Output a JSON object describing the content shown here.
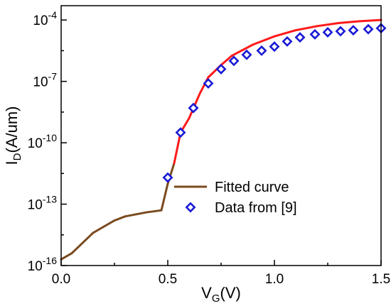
{
  "chart_data": {
    "type": "line",
    "title": "",
    "xlabel": {
      "main": "V",
      "sub": "G",
      "tail": "(V)"
    },
    "ylabel": {
      "main": "I",
      "sub": "D",
      "tail": "(A/um)"
    },
    "xlim": [
      0.0,
      1.5
    ],
    "ylim_log10": [
      -16,
      -3.3
    ],
    "yscale": "log",
    "grid": false,
    "x_ticks": [
      {
        "value": 0.0,
        "label": "0.0"
      },
      {
        "value": 0.5,
        "label": "0.5"
      },
      {
        "value": 1.0,
        "label": "1.0"
      },
      {
        "value": 1.5,
        "label": "1.5"
      }
    ],
    "y_ticks": [
      {
        "value": -16,
        "base": "10",
        "exp": "-16"
      },
      {
        "value": -13,
        "base": "10",
        "exp": "-13"
      },
      {
        "value": -10,
        "base": "10",
        "exp": "-10"
      },
      {
        "value": -7,
        "base": "10",
        "exp": "-7"
      },
      {
        "value": -4,
        "base": "10",
        "exp": "-4"
      }
    ],
    "legend_position": "center-right",
    "series": [
      {
        "name": "Fitted curve",
        "style": "line",
        "colors": {
          "low": "#7a4a1e",
          "high": "#ff1a1a"
        },
        "x": [
          0.0,
          0.05,
          0.1,
          0.15,
          0.2,
          0.25,
          0.3,
          0.35,
          0.4,
          0.45,
          0.47,
          0.5,
          0.53,
          0.56,
          0.6,
          0.65,
          0.69,
          0.75,
          0.8,
          0.9,
          1.0,
          1.1,
          1.2,
          1.3,
          1.4,
          1.5
        ],
        "y_log10": [
          -15.7,
          -15.4,
          -14.9,
          -14.4,
          -14.1,
          -13.8,
          -13.6,
          -13.5,
          -13.4,
          -13.33,
          -13.3,
          -12.0,
          -11.0,
          -9.5,
          -8.8,
          -7.6,
          -6.8,
          -6.2,
          -5.75,
          -5.2,
          -4.8,
          -4.5,
          -4.3,
          -4.15,
          -4.06,
          -4.0
        ]
      },
      {
        "name": "Data from [9]",
        "style": "marker",
        "marker": "diamond",
        "color": "#1a1ad4",
        "x": [
          0.5,
          0.56,
          0.62,
          0.69,
          0.75,
          0.81,
          0.87,
          0.94,
          1.0,
          1.06,
          1.12,
          1.19,
          1.25,
          1.31,
          1.37,
          1.44,
          1.5
        ],
        "y_log10": [
          -11.7,
          -9.5,
          -8.3,
          -7.1,
          -6.4,
          -6.0,
          -5.7,
          -5.5,
          -5.3,
          -5.05,
          -4.85,
          -4.7,
          -4.6,
          -4.55,
          -4.5,
          -4.45,
          -4.4
        ]
      }
    ]
  }
}
